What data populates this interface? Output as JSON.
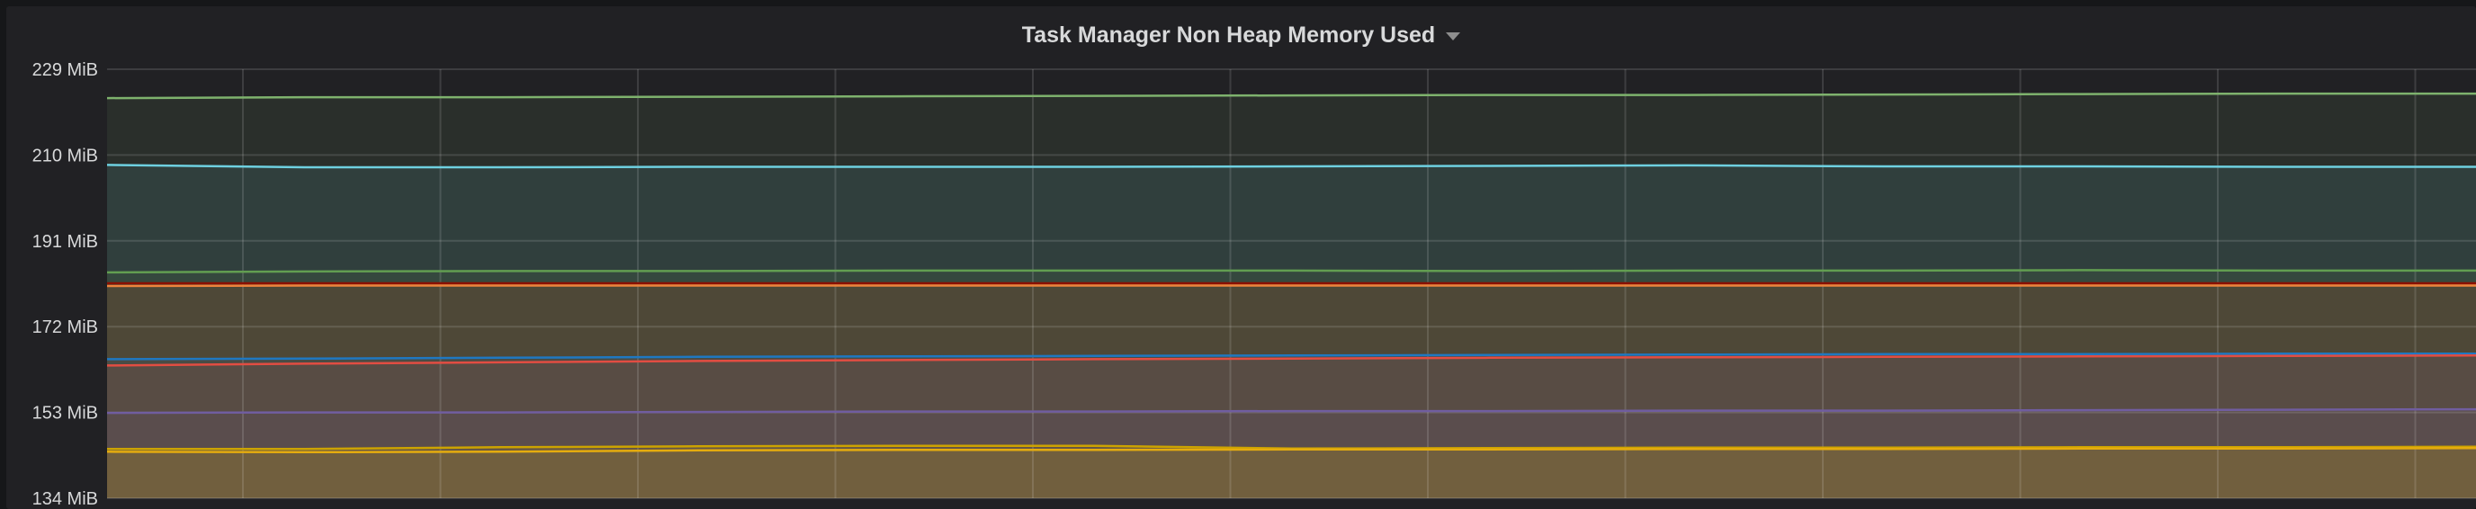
{
  "chart_data": {
    "type": "area",
    "title": "Task Manager Non Heap Memory Used",
    "ylabel": "",
    "xlabel": "",
    "y_unit": "MiB",
    "ylim": [
      134,
      229
    ],
    "y_ticks": [
      "229 MiB",
      "210 MiB",
      "191 MiB",
      "172 MiB",
      "153 MiB",
      "134 MiB"
    ],
    "grid": true,
    "legend": "none",
    "series": [
      {
        "color": "#7EB26D",
        "values": [
          222.6,
          222.8,
          222.8,
          222.9,
          223.0,
          223.1,
          223.2,
          223.3,
          223.3,
          223.4,
          223.5,
          223.6,
          223.6
        ]
      },
      {
        "color": "#6ED0E0",
        "values": [
          207.8,
          207.3,
          207.3,
          207.4,
          207.4,
          207.4,
          207.5,
          207.6,
          207.7,
          207.5,
          207.5,
          207.4,
          207.4
        ]
      },
      {
        "color": "#629E51",
        "values": [
          184.0,
          184.2,
          184.3,
          184.3,
          184.4,
          184.4,
          184.4,
          184.3,
          184.4,
          184.4,
          184.5,
          184.4,
          184.4
        ]
      },
      {
        "color": "#890F02",
        "values": [
          181.6,
          181.6,
          181.6,
          181.6,
          181.6,
          181.6,
          181.6,
          181.6,
          181.6,
          181.6,
          181.6,
          181.6,
          181.6
        ]
      },
      {
        "color": "#EF843C",
        "values": [
          181.0,
          181.1,
          181.1,
          181.1,
          181.1,
          181.1,
          181.1,
          181.1,
          181.1,
          181.1,
          181.1,
          181.1,
          181.1
        ]
      },
      {
        "color": "#1F78C1",
        "values": [
          164.8,
          164.9,
          165.1,
          165.3,
          165.4,
          165.5,
          165.6,
          165.7,
          165.8,
          165.9,
          165.9,
          166.0,
          166.0
        ]
      },
      {
        "color": "#E24D42",
        "values": [
          163.4,
          163.8,
          164.1,
          164.4,
          164.6,
          164.8,
          164.9,
          165.1,
          165.2,
          165.3,
          165.4,
          165.5,
          165.6
        ]
      },
      {
        "color": "#705DA0",
        "values": [
          152.9,
          153.0,
          153.0,
          153.1,
          153.2,
          153.2,
          153.3,
          153.3,
          153.4,
          153.4,
          153.5,
          153.6,
          153.7
        ]
      },
      {
        "color": "#CCA300",
        "values": [
          144.9,
          144.9,
          145.3,
          145.5,
          145.6,
          145.6,
          145.0,
          145.1,
          145.2,
          145.2,
          145.3,
          145.3,
          145.4
        ]
      },
      {
        "color": "#E5AC0E",
        "values": [
          144.3,
          144.2,
          144.3,
          144.6,
          144.7,
          144.7,
          144.8,
          144.8,
          144.9,
          144.9,
          145.0,
          145.0,
          145.1
        ]
      }
    ]
  }
}
